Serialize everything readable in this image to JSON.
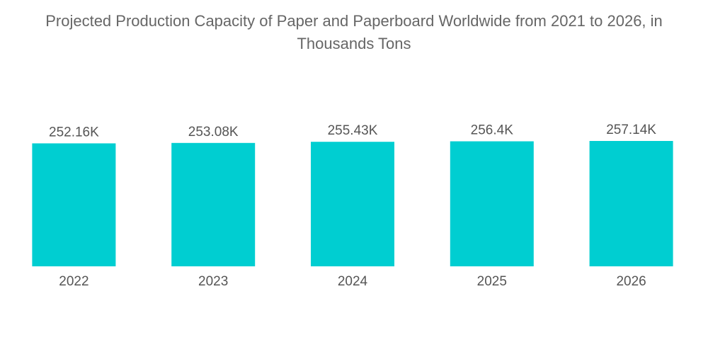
{
  "chart_data": {
    "type": "bar",
    "title_lines": [
      "Projected Production Capacity of Paper and Paperboard Worldwide from 2021 to 2026, in",
      "Thousands Tons"
    ],
    "categories": [
      "2022",
      "2023",
      "2024",
      "2025",
      "2026"
    ],
    "values": [
      252.16,
      253.08,
      255.43,
      256.4,
      257.14
    ],
    "data_labels": [
      "252.16K",
      "253.08K",
      "255.43K",
      "256.4K",
      "257.14K"
    ],
    "xlabel": "",
    "ylabel": "",
    "ylim": [
      0,
      257.14
    ],
    "grid": false,
    "legend": "none",
    "bar_color": "#00ced1",
    "label_color": "#555555",
    "title_color": "#666666"
  }
}
